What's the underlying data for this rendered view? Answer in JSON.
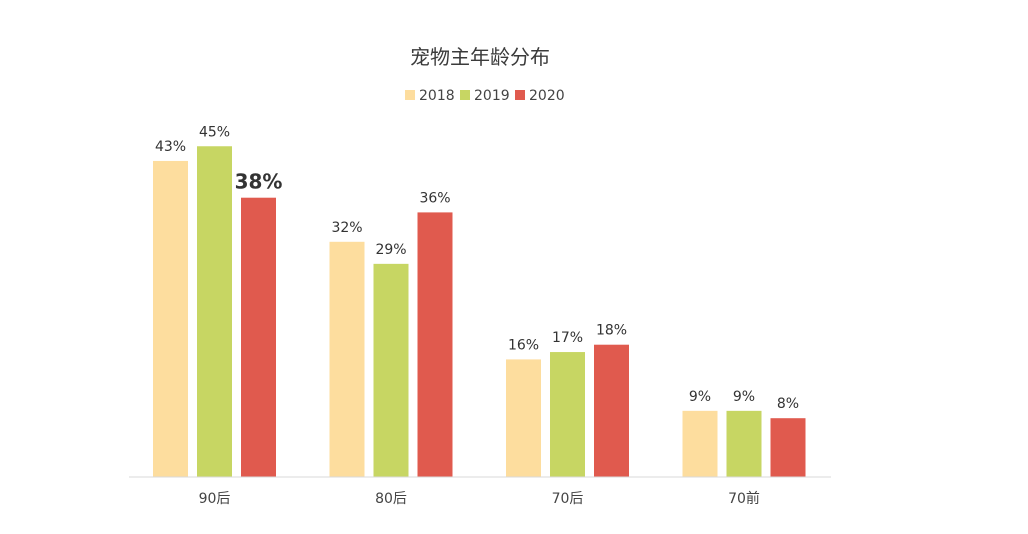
{
  "chart_data": {
    "type": "bar",
    "title": "宠物主年龄分布",
    "categories": [
      "90后",
      "80后",
      "70后",
      "70前"
    ],
    "series": [
      {
        "name": "2018",
        "color": "#FDDD9E",
        "values": [
          43,
          32,
          16,
          9
        ],
        "labels": [
          "43%",
          "32%",
          "16%",
          "9%"
        ]
      },
      {
        "name": "2019",
        "color": "#C7D663",
        "values": [
          45,
          29,
          17,
          9
        ],
        "labels": [
          "45%",
          "29%",
          "17%",
          "9%"
        ]
      },
      {
        "name": "2020",
        "color": "#E05A4E",
        "values": [
          38,
          36,
          18,
          8
        ],
        "labels": [
          "38%",
          "36%",
          "18%",
          "8%"
        ]
      }
    ],
    "highlight": {
      "series_index": 2,
      "category_index": 0,
      "color": "#E24A3B"
    },
    "ylim": [
      0,
      50
    ],
    "xlabel": "",
    "ylabel": "",
    "grid": false,
    "legend": "top-center",
    "axis_color": "#D9D9D9"
  }
}
